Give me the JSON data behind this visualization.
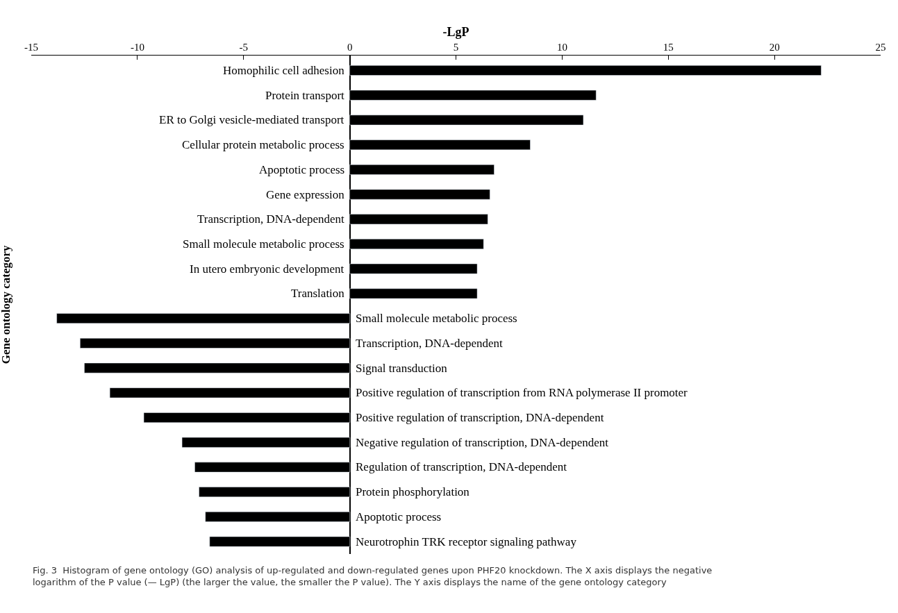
{
  "chart_data": {
    "type": "bar",
    "orientation": "horizontal",
    "xlabel": "-LgP",
    "ylabel": "Gene ontology category",
    "categories": [
      "Homophilic cell adhesion",
      "Protein transport",
      "ER to Golgi vesicle-mediated transport",
      "Cellular protein metabolic process",
      "Apoptotic process",
      "Gene expression",
      "Transcription, DNA-dependent",
      "Small molecule metabolic process",
      "In utero embryonic development",
      "Translation",
      "Small molecule metabolic process",
      "Transcription, DNA-dependent",
      "Signal transduction",
      "Positive regulation of transcription from RNA polymerase II promoter",
      "Positive regulation of transcription, DNA-dependent",
      "Negative regulation of transcription, DNA-dependent",
      "Regulation of transcription, DNA-dependent",
      "Protein phosphorylation",
      "Apoptotic process",
      "Neurotrophin TRK receptor signaling pathway"
    ],
    "values": [
      22.2,
      11.6,
      11.0,
      8.5,
      6.8,
      6.6,
      6.5,
      6.3,
      6.0,
      6.0,
      -13.8,
      -12.7,
      -12.5,
      -11.3,
      -9.7,
      -7.9,
      -7.3,
      -7.1,
      -6.8,
      -6.6
    ],
    "color": "#000000",
    "xlim": [
      -15,
      25
    ],
    "xticks": [
      -15,
      -10,
      -5,
      0,
      5,
      10,
      15,
      20,
      25
    ],
    "annotations": [
      "Fig. 3  Histogram of gene ontology (GO) analysis of up-regulated and down-regulated genes upon PHF20 knockdown. The X axis displays the negative logarithm of the P value (— LgP) (the larger the value, the smaller the P value). The Y axis displays the name of the gene ontology category"
    ]
  }
}
